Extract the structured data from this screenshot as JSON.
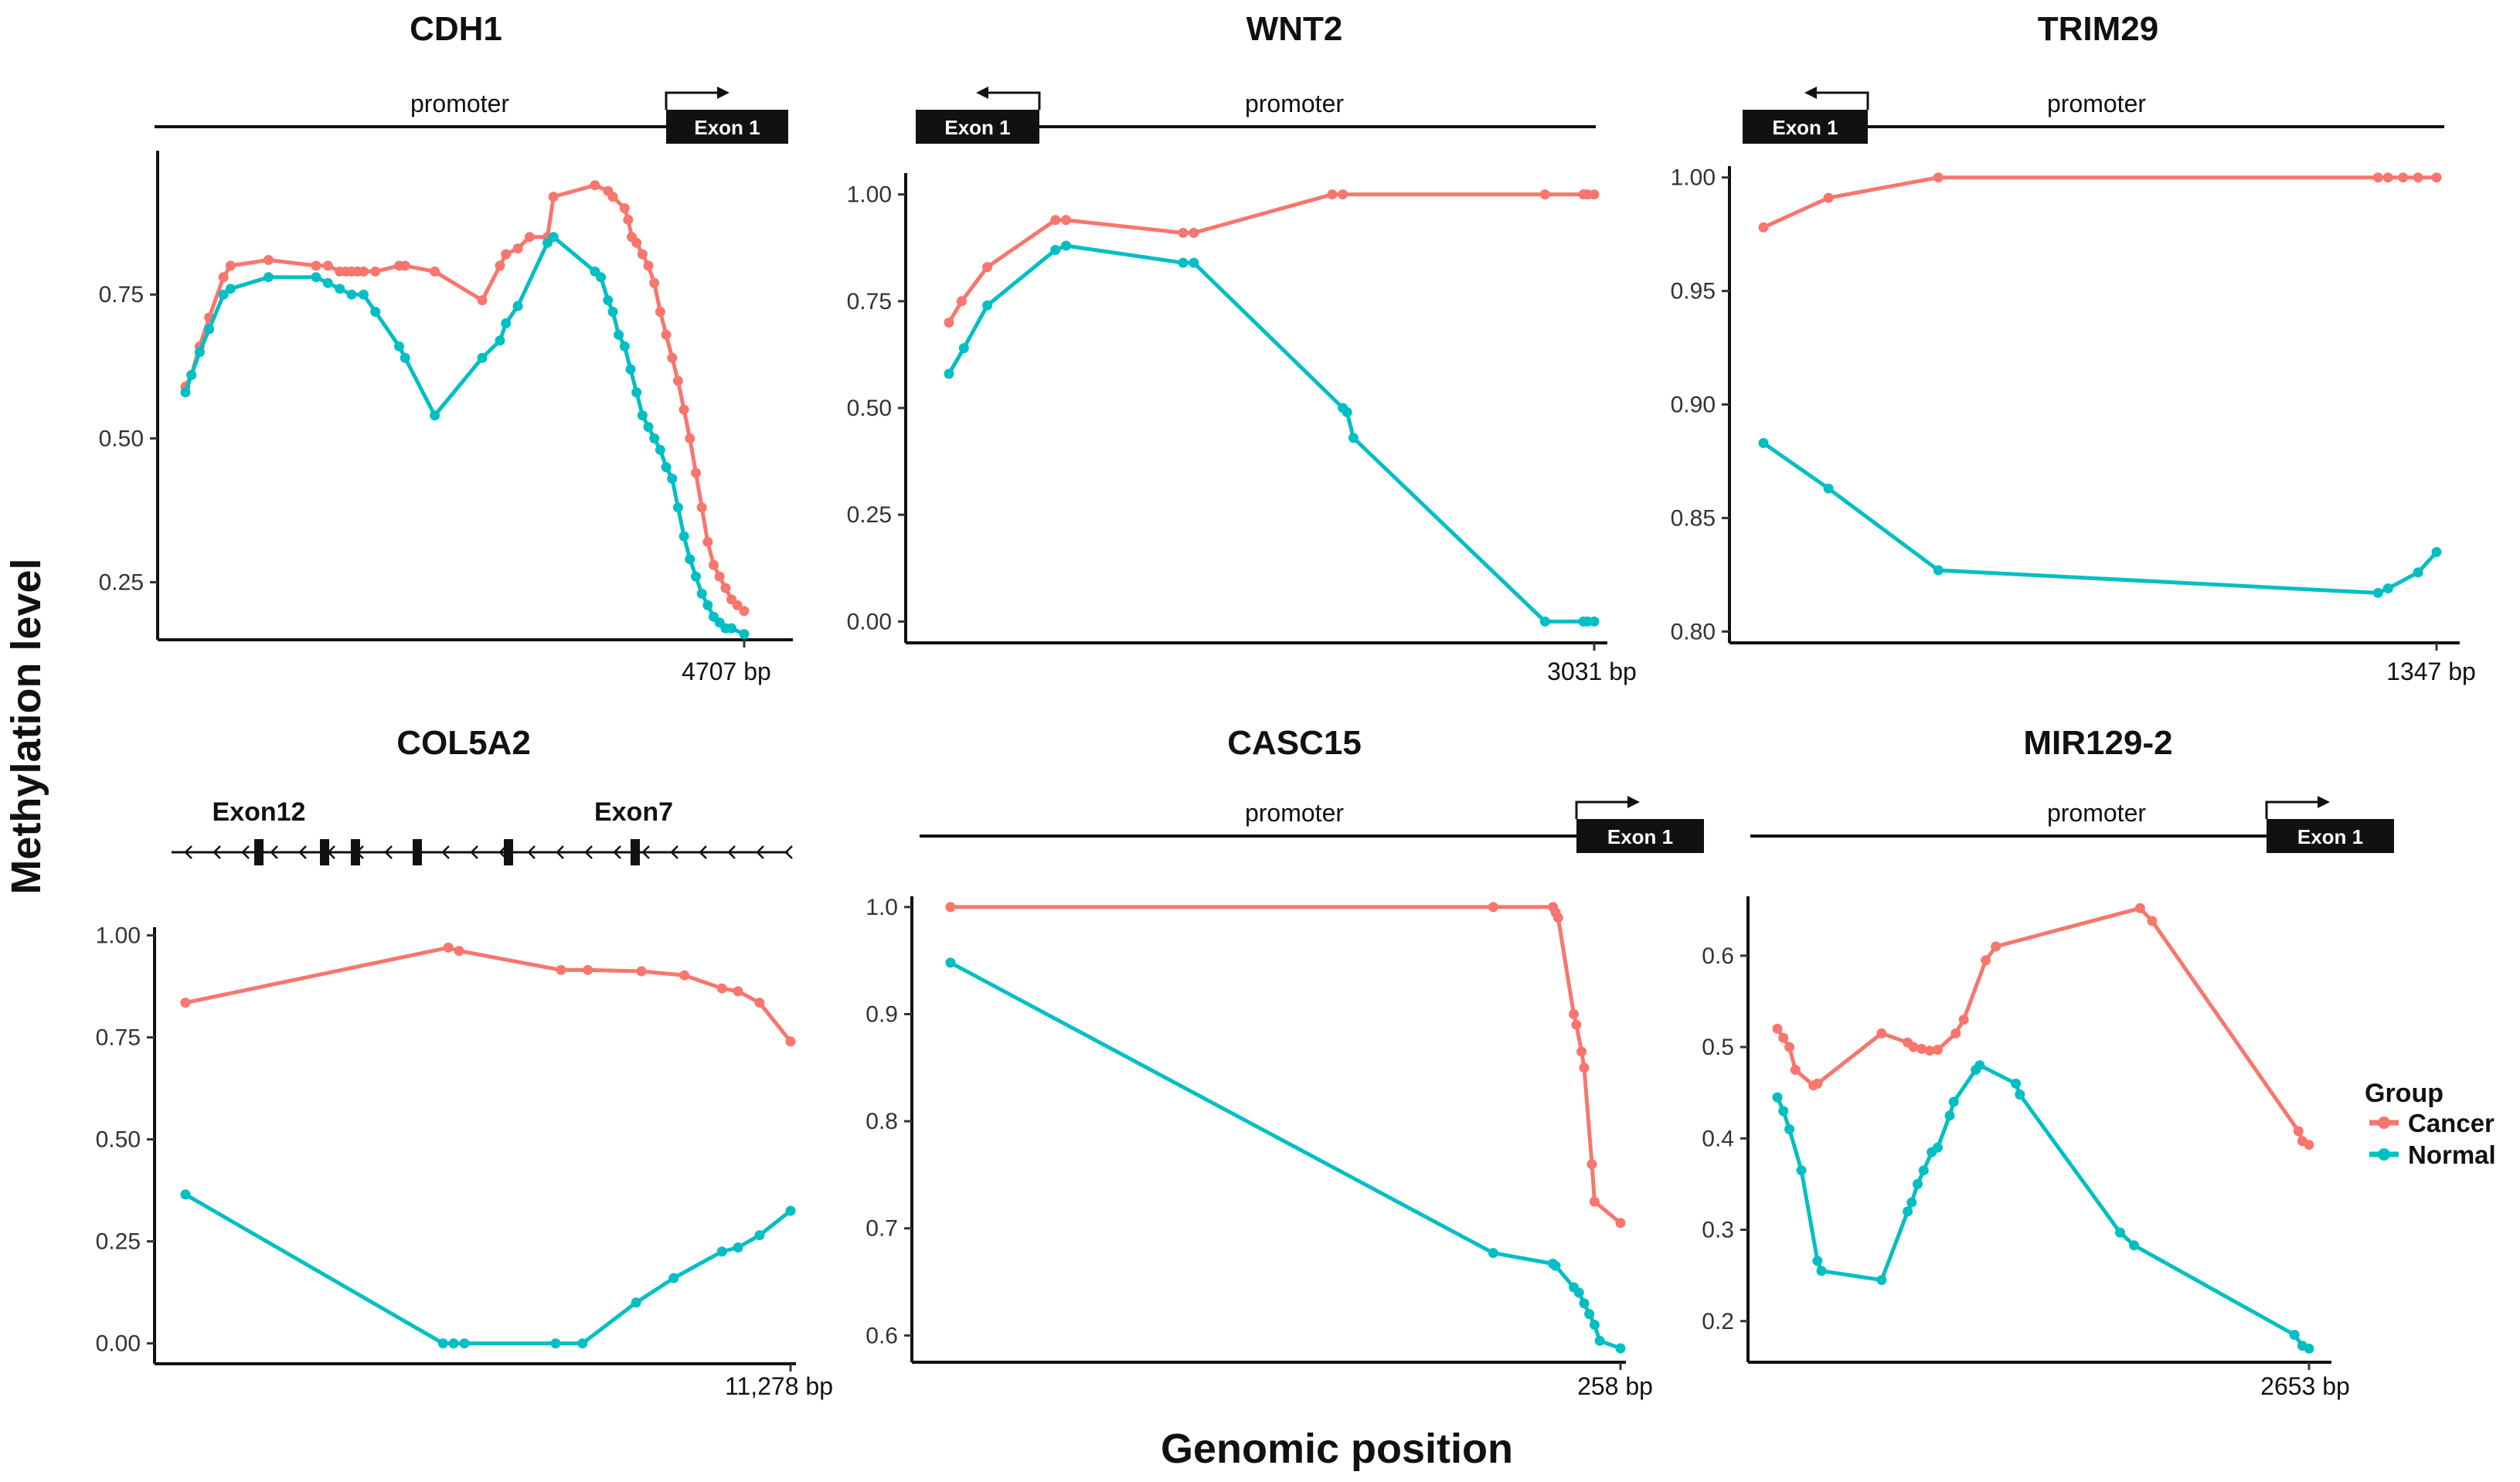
{
  "figure": {
    "x_axis_title": "Genomic position",
    "y_axis_title": "Methylation level",
    "legend": {
      "title": "Group",
      "placement": "right",
      "items": [
        {
          "label": "Cancer",
          "color": "#F8766D"
        },
        {
          "label": "Normal",
          "color": "#00BFC4"
        }
      ]
    }
  },
  "chart_data": [
    {
      "type": "line",
      "title": "CDH1",
      "structure": {
        "kind": "promoter",
        "label": "promoter",
        "exon_label": "Exon 1",
        "exon_side": "right",
        "arrow": "right"
      },
      "xlabel": "Genomic position",
      "ylabel": "Methylation level",
      "xlim": [
        0,
        4707
      ],
      "ylim": [
        0.15,
        1.0
      ],
      "yticks": [
        0.25,
        0.5,
        0.75
      ],
      "ytick_labels": [
        "0.25",
        "0.50",
        "0.75"
      ],
      "end_label": "4707 bp",
      "series": [
        {
          "name": "Cancer",
          "x": [
            0,
            50,
            120,
            200,
            320,
            380,
            700,
            1100,
            1200,
            1300,
            1350,
            1400,
            1450,
            1500,
            1600,
            1800,
            1850,
            2100,
            2500,
            2650,
            2700,
            2800,
            2900,
            3050,
            3100,
            3450,
            3560,
            3600,
            3700,
            3730,
            3760,
            3800,
            3850,
            3900,
            3950,
            4000,
            4050,
            4100,
            4150,
            4200,
            4250,
            4300,
            4350,
            4400,
            4450,
            4500,
            4550,
            4600,
            4650,
            4707
          ],
          "y": [
            0.59,
            0.61,
            0.66,
            0.71,
            0.78,
            0.8,
            0.81,
            0.8,
            0.8,
            0.79,
            0.79,
            0.79,
            0.79,
            0.79,
            0.79,
            0.8,
            0.8,
            0.79,
            0.74,
            0.8,
            0.82,
            0.83,
            0.85,
            0.85,
            0.92,
            0.94,
            0.93,
            0.92,
            0.9,
            0.88,
            0.85,
            0.84,
            0.82,
            0.8,
            0.77,
            0.72,
            0.68,
            0.64,
            0.6,
            0.55,
            0.5,
            0.44,
            0.38,
            0.32,
            0.28,
            0.26,
            0.24,
            0.22,
            0.21,
            0.2
          ]
        },
        {
          "name": "Normal",
          "x": [
            0,
            50,
            120,
            200,
            320,
            380,
            700,
            1100,
            1200,
            1300,
            1400,
            1500,
            1600,
            1800,
            1850,
            2100,
            2500,
            2650,
            2700,
            2800,
            3050,
            3100,
            3450,
            3500,
            3560,
            3600,
            3650,
            3700,
            3750,
            3800,
            3850,
            3900,
            3950,
            4000,
            4050,
            4100,
            4150,
            4200,
            4250,
            4300,
            4350,
            4400,
            4450,
            4500,
            4550,
            4600,
            4707
          ],
          "y": [
            0.58,
            0.61,
            0.65,
            0.69,
            0.75,
            0.76,
            0.78,
            0.78,
            0.77,
            0.76,
            0.75,
            0.75,
            0.72,
            0.66,
            0.64,
            0.54,
            0.64,
            0.67,
            0.7,
            0.73,
            0.84,
            0.85,
            0.79,
            0.78,
            0.74,
            0.72,
            0.68,
            0.66,
            0.62,
            0.58,
            0.54,
            0.52,
            0.5,
            0.48,
            0.45,
            0.43,
            0.38,
            0.33,
            0.29,
            0.26,
            0.23,
            0.21,
            0.19,
            0.18,
            0.17,
            0.17,
            0.16
          ]
        }
      ]
    },
    {
      "type": "line",
      "title": "WNT2",
      "structure": {
        "kind": "promoter",
        "label": "promoter",
        "exon_label": "Exon 1",
        "exon_side": "left",
        "arrow": "left"
      },
      "xlabel": "Genomic position",
      "ylabel": "Methylation level",
      "xlim": [
        0,
        3031
      ],
      "ylim": [
        -0.05,
        1.05
      ],
      "yticks": [
        0.0,
        0.25,
        0.5,
        0.75,
        1.0
      ],
      "ytick_labels": [
        "0.00",
        "0.25",
        "0.50",
        "0.75",
        "1.00"
      ],
      "end_label": "3031 bp",
      "series": [
        {
          "name": "Cancer",
          "x": [
            0,
            60,
            180,
            500,
            550,
            1100,
            1150,
            1800,
            1850,
            2800,
            2980,
            3000,
            3031
          ],
          "y": [
            0.7,
            0.75,
            0.83,
            0.94,
            0.94,
            0.91,
            0.91,
            1.0,
            1.0,
            1.0,
            1.0,
            1.0,
            1.0
          ]
        },
        {
          "name": "Normal",
          "x": [
            0,
            70,
            180,
            500,
            550,
            1100,
            1150,
            1850,
            1870,
            1900,
            2800,
            2980,
            3000,
            3031
          ],
          "y": [
            0.58,
            0.64,
            0.74,
            0.87,
            0.88,
            0.84,
            0.84,
            0.5,
            0.49,
            0.43,
            0.0,
            0.0,
            0.0,
            0.0
          ]
        }
      ]
    },
    {
      "type": "line",
      "title": "TRIM29",
      "structure": {
        "kind": "promoter",
        "label": "promoter",
        "exon_label": "Exon 1",
        "exon_side": "left",
        "arrow": "left"
      },
      "xlabel": "Genomic position",
      "ylabel": "Methylation level",
      "xlim": [
        0,
        1347
      ],
      "ylim": [
        0.795,
        1.005
      ],
      "yticks": [
        0.8,
        0.85,
        0.9,
        0.95,
        1.0
      ],
      "ytick_labels": [
        "0.80",
        "0.85",
        "0.90",
        "0.95",
        "1.00"
      ],
      "end_label": "1347 bp",
      "series": [
        {
          "name": "Cancer",
          "x": [
            0,
            130,
            350,
            1230,
            1250,
            1280,
            1310,
            1347
          ],
          "y": [
            0.978,
            0.991,
            1.0,
            1.0,
            1.0,
            1.0,
            1.0,
            1.0
          ]
        },
        {
          "name": "Normal",
          "x": [
            0,
            130,
            350,
            1230,
            1250,
            1310,
            1347
          ],
          "y": [
            0.883,
            0.863,
            0.827,
            0.817,
            0.819,
            0.826,
            0.835
          ]
        }
      ]
    },
    {
      "type": "line",
      "title": "COL5A2",
      "structure": {
        "kind": "gene",
        "exon_labels": [
          "Exon12",
          "Exon7"
        ]
      },
      "xlabel": "Genomic position",
      "ylabel": "Methylation level",
      "xlim": [
        0,
        11278
      ],
      "ylim": [
        -0.05,
        1.02
      ],
      "yticks": [
        0.0,
        0.25,
        0.5,
        0.75,
        1.0
      ],
      "ytick_labels": [
        "0.00",
        "0.25",
        "0.50",
        "0.75",
        "1.00"
      ],
      "end_label": "11,278 bp",
      "series": [
        {
          "name": "Cancer",
          "x": [
            0,
            4900,
            5100,
            7000,
            7500,
            8500,
            9300,
            10000,
            10300,
            10700,
            11278
          ],
          "y": [
            0.835,
            0.97,
            0.962,
            0.915,
            0.915,
            0.912,
            0.902,
            0.87,
            0.863,
            0.835,
            0.74
          ]
        },
        {
          "name": "Normal",
          "x": [
            0,
            4800,
            5000,
            5200,
            6900,
            7400,
            8400,
            9100,
            10000,
            10300,
            10700,
            11278
          ],
          "y": [
            0.365,
            0.0,
            0.0,
            0.0,
            0.0,
            0.0,
            0.1,
            0.16,
            0.225,
            0.235,
            0.265,
            0.325
          ]
        }
      ]
    },
    {
      "type": "line",
      "title": "CASC15",
      "structure": {
        "kind": "promoter",
        "label": "promoter",
        "exon_label": "Exon 1",
        "exon_side": "right",
        "arrow": "right"
      },
      "xlabel": "Genomic position",
      "ylabel": "Methylation level",
      "xlim": [
        0,
        258
      ],
      "ylim": [
        0.575,
        1.01
      ],
      "yticks": [
        0.6,
        0.7,
        0.8,
        0.9,
        1.0
      ],
      "ytick_labels": [
        "0.6",
        "0.7",
        "0.8",
        "0.9",
        "1.0"
      ],
      "end_label": "258 bp",
      "series": [
        {
          "name": "Cancer",
          "x": [
            0,
            209,
            232,
            233,
            234,
            240,
            241,
            243,
            244,
            247,
            248,
            258
          ],
          "y": [
            1.0,
            1.0,
            1.0,
            0.995,
            0.99,
            0.9,
            0.89,
            0.865,
            0.85,
            0.76,
            0.725,
            0.705
          ]
        },
        {
          "name": "Normal",
          "x": [
            0,
            209,
            232,
            233,
            240,
            242,
            244,
            246,
            248,
            250,
            258
          ],
          "y": [
            0.948,
            0.677,
            0.667,
            0.665,
            0.645,
            0.64,
            0.63,
            0.62,
            0.61,
            0.595,
            0.588
          ]
        }
      ]
    },
    {
      "type": "line",
      "title": "MIR129-2",
      "structure": {
        "kind": "promoter",
        "label": "promoter",
        "exon_label": "Exon 1",
        "exon_side": "right",
        "arrow": "right"
      },
      "xlabel": "Genomic position",
      "ylabel": "Methylation level",
      "xlim": [
        0,
        2653
      ],
      "ylim": [
        0.155,
        0.665
      ],
      "yticks": [
        0.2,
        0.3,
        0.4,
        0.5,
        0.6
      ],
      "ytick_labels": [
        "0.2",
        "0.3",
        "0.4",
        "0.5",
        "0.6"
      ],
      "end_label": "2653 bp",
      "series": [
        {
          "name": "Cancer",
          "x": [
            0,
            30,
            60,
            90,
            180,
            200,
            520,
            650,
            680,
            720,
            760,
            800,
            890,
            930,
            1040,
            1090,
            1810,
            1870,
            2600,
            2620,
            2653
          ],
          "y": [
            0.52,
            0.51,
            0.5,
            0.475,
            0.458,
            0.46,
            0.515,
            0.505,
            0.5,
            0.498,
            0.496,
            0.497,
            0.515,
            0.53,
            0.595,
            0.61,
            0.652,
            0.638,
            0.408,
            0.397,
            0.393
          ]
        },
        {
          "name": "Normal",
          "x": [
            0,
            30,
            60,
            120,
            200,
            220,
            520,
            650,
            670,
            700,
            730,
            770,
            800,
            860,
            880,
            990,
            1010,
            1190,
            1210,
            1710,
            1780,
            2580,
            2620,
            2653
          ],
          "y": [
            0.445,
            0.43,
            0.41,
            0.365,
            0.266,
            0.255,
            0.245,
            0.32,
            0.33,
            0.35,
            0.365,
            0.385,
            0.39,
            0.425,
            0.44,
            0.475,
            0.48,
            0.46,
            0.448,
            0.297,
            0.283,
            0.185,
            0.173,
            0.17
          ]
        }
      ]
    }
  ]
}
